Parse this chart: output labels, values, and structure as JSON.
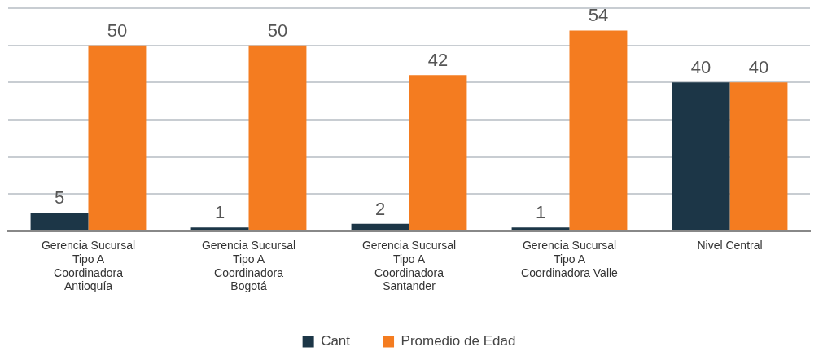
{
  "chart_data": {
    "type": "bar",
    "categories": [
      "Gerencia Sucursal Tipo A Coordinadora Antioquía",
      "Gerencia Sucursal Tipo A Coordinadora Bogotá",
      "Gerencia Sucursal Tipo A Coordinadora Santander",
      "Gerencia Sucursal Tipo A Coordinadora Valle",
      "Nivel Central"
    ],
    "series": [
      {
        "name": "Cant",
        "color": "#1c3647",
        "values": [
          5,
          1,
          2,
          1,
          40
        ]
      },
      {
        "name": "Promedio de Edad",
        "color": "#f47c20",
        "values": [
          50,
          50,
          42,
          54,
          40
        ]
      }
    ],
    "ylim": [
      0,
      60
    ],
    "yticks": [
      {
        "value": 0,
        "label": null
      },
      {
        "value": 10,
        "label": null
      },
      {
        "value": 20,
        "label": null
      },
      {
        "value": 30,
        "label": null
      },
      {
        "value": 40,
        "label": null
      },
      {
        "value": 50,
        "label": null
      },
      {
        "value": 60,
        "label": null
      }
    ],
    "tick_labels": "x",
    "grid": "y",
    "legend": "bottom",
    "data_labels": true
  }
}
